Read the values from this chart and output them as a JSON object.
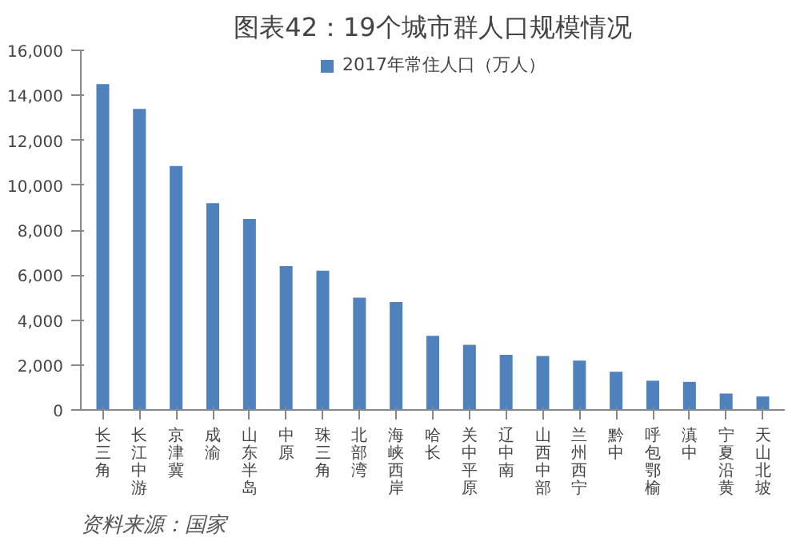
{
  "chart_data": {
    "type": "bar",
    "title": "图表42：19个城市群人口规模情况",
    "categories": [
      "长三角",
      "长江中游",
      "京津冀",
      "成渝",
      "山东半岛",
      "中原",
      "珠三角",
      "北部湾",
      "海峡西岸",
      "哈长",
      "关中平原",
      "辽中南",
      "山西中部",
      "兰州西宁",
      "黔中",
      "呼包鄂榆",
      "滇中",
      "宁夏沿黄",
      "天山北坡"
    ],
    "series": [
      {
        "name": "2017年常住人口（万人）",
        "color": "#4f81bd",
        "values": [
          14500,
          13400,
          10850,
          9200,
          8500,
          6400,
          6200,
          5000,
          4800,
          3300,
          2900,
          2450,
          2400,
          2200,
          1700,
          1300,
          1250,
          730,
          600
        ]
      }
    ],
    "ylim": [
      0,
      16000
    ],
    "yticks": [
      0,
      {
        "value": 2000,
        "label": "2,000"
      },
      {
        "value": 4000,
        "label": "4,000"
      },
      {
        "value": 6000,
        "label": "6,000"
      },
      {
        "value": 8000,
        "label": "8,000"
      },
      {
        "value": 10000,
        "label": "10,000"
      },
      {
        "value": 12000,
        "label": "12,000"
      },
      {
        "value": 14000,
        "label": "14,000"
      },
      {
        "value": 16000,
        "label": "16,000"
      }
    ],
    "grid": false,
    "legend": "top",
    "annotations": [
      "资料来源：国家"
    ]
  }
}
